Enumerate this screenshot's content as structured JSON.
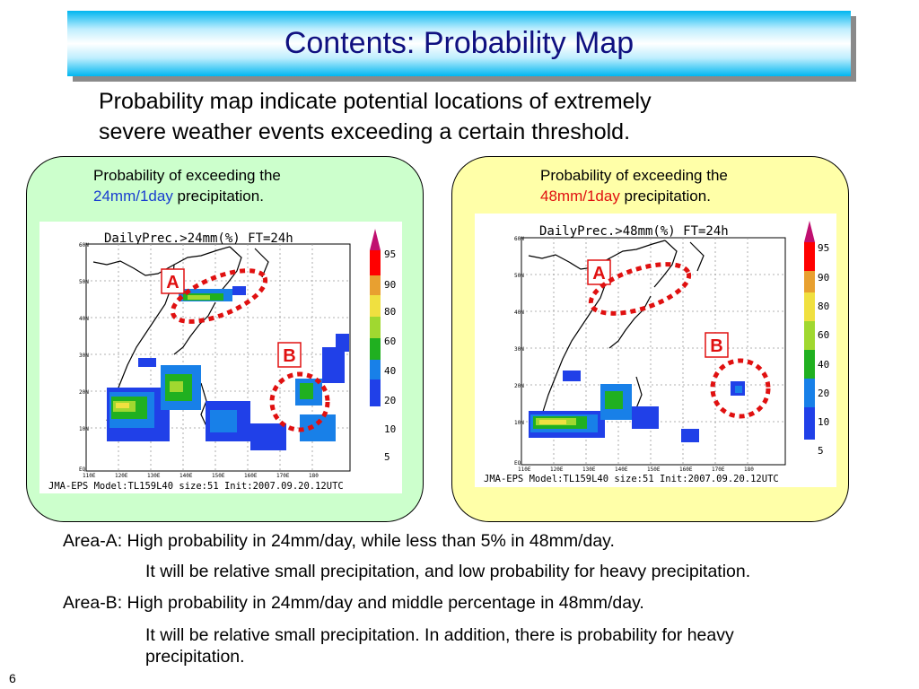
{
  "title": "Contents: Probability Map",
  "intro": {
    "line1": "Probability map indicate  potential locations of extremely",
    "line2": "severe weather events exceeding a certain threshold."
  },
  "left_panel": {
    "caption_line1": "Probability of exceeding the",
    "caption_threshold": "24mm/1day",
    "caption_rest": " precipitation.",
    "map_title": "DailyPrec.>24mm(%)  FT=24h",
    "map_footer": "JMA-EPS Model:TL159L40 size:51 Init:2007.09.20.12UTC",
    "marker_a": "A",
    "marker_b": "B"
  },
  "right_panel": {
    "caption_line1": "Probability of exceeding the",
    "caption_threshold": "48mm/1day",
    "caption_rest": " precipitation.",
    "map_title": "DailyPrec.>48mm(%)  FT=24h",
    "map_footer": "JMA-EPS Model:TL159L40 size:51 Init:2007.09.20.12UTC",
    "marker_a": "A",
    "marker_b": "B"
  },
  "legend": {
    "labels": [
      "95",
      "90",
      "80",
      "60",
      "40",
      "20",
      "10",
      "5"
    ],
    "colors": [
      "#ff0000",
      "#ff0000",
      "#e8a030",
      "#f0e040",
      "#a0d830",
      "#20b020",
      "#1880e8",
      "#2040e8"
    ]
  },
  "lat_labels": [
    "60N",
    "50N",
    "40N",
    "30N",
    "20N",
    "10N",
    "EQ"
  ],
  "lon_labels": [
    "110E",
    "120E",
    "130E",
    "140E",
    "150E",
    "160E",
    "170E",
    "180"
  ],
  "notes": {
    "area_a_line": "Area-A: High probability in 24mm/day, while less than 5% in 48mm/day.",
    "area_a_detail": "It will be relative small precipitation, and low probability for heavy precipitation.",
    "area_b_line": "Area-B: High probability in 24mm/day and middle percentage in 48mm/day.",
    "area_b_detail_1": "It will be relative small precipitation. In addition, there is probability for heavy",
    "area_b_detail_2": "precipitation."
  },
  "slide_number": "6",
  "colors": {
    "title_text": "#101080",
    "left_panel_bg": "#ccffcc",
    "right_panel_bg": "#ffffa8",
    "marker_circle": "#e01010",
    "threshold_24": "#1a3fd0",
    "threshold_48": "#e01010"
  }
}
